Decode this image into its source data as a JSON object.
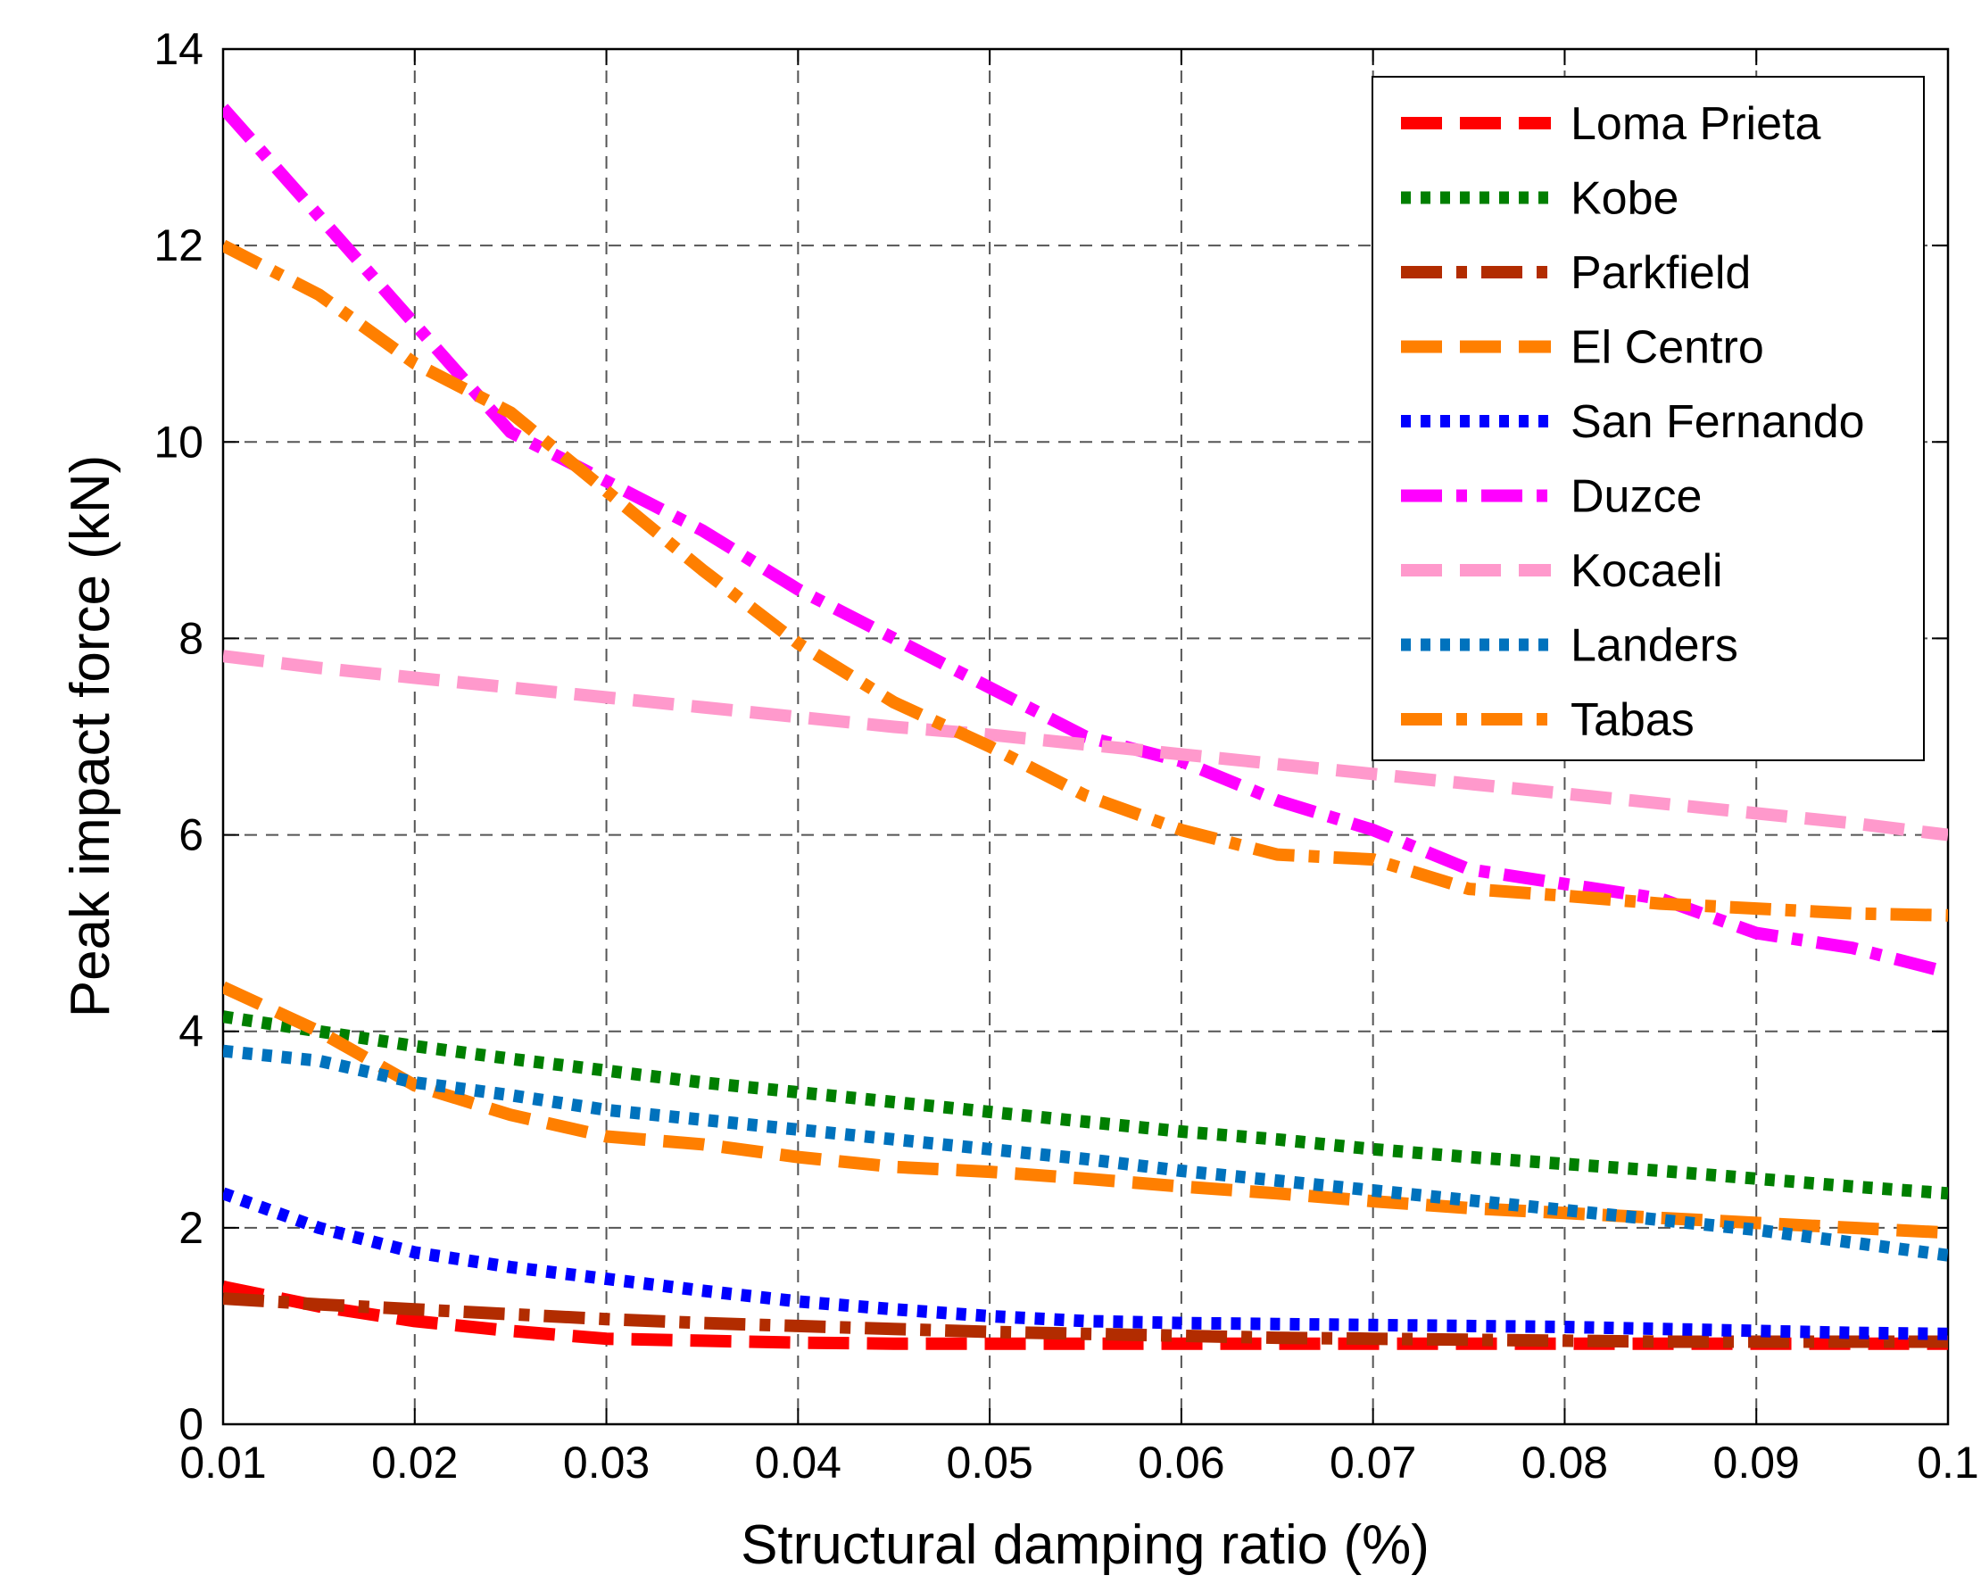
{
  "chart_data": {
    "type": "line",
    "title": "",
    "xlabel": "Structural damping ratio (%)",
    "ylabel": "Peak impact force (kN)",
    "xlim": [
      0.01,
      0.1
    ],
    "ylim": [
      0,
      14
    ],
    "grid": true,
    "legend_position": "top-right",
    "x_ticks": [
      "0.01",
      "0.02",
      "0.03",
      "0.04",
      "0.05",
      "0.06",
      "0.07",
      "0.08",
      "0.09",
      "0.1"
    ],
    "y_ticks": [
      "0",
      "2",
      "4",
      "6",
      "8",
      "10",
      "12",
      "14"
    ],
    "series": [
      {
        "name": "Loma Prieta",
        "color": "#ff0000",
        "style": "dashed",
        "x": [
          0.01,
          0.015,
          0.02,
          0.025,
          0.03,
          0.035,
          0.04,
          0.045,
          0.05,
          0.055,
          0.06,
          0.065,
          0.07,
          0.075,
          0.08,
          0.085,
          0.09,
          0.095,
          0.1
        ],
        "y": [
          1.4,
          1.2,
          1.05,
          0.95,
          0.87,
          0.85,
          0.83,
          0.82,
          0.82,
          0.82,
          0.82,
          0.82,
          0.82,
          0.82,
          0.82,
          0.82,
          0.82,
          0.82,
          0.82
        ]
      },
      {
        "name": "Kobe",
        "color": "#007f00",
        "style": "dotted",
        "x": [
          0.01,
          0.015,
          0.02,
          0.025,
          0.03,
          0.035,
          0.04,
          0.045,
          0.05,
          0.055,
          0.06,
          0.065,
          0.07,
          0.075,
          0.08,
          0.085,
          0.09,
          0.095,
          0.1
        ],
        "y": [
          4.15,
          4.0,
          3.85,
          3.72,
          3.6,
          3.48,
          3.38,
          3.28,
          3.18,
          3.08,
          2.98,
          2.9,
          2.8,
          2.72,
          2.65,
          2.58,
          2.5,
          2.42,
          2.35
        ]
      },
      {
        "name": "Parkfield",
        "color": "#b22c00",
        "style": "dashdot",
        "x": [
          0.01,
          0.015,
          0.02,
          0.025,
          0.03,
          0.035,
          0.04,
          0.045,
          0.05,
          0.055,
          0.06,
          0.065,
          0.07,
          0.075,
          0.08,
          0.085,
          0.09,
          0.095,
          0.1
        ],
        "y": [
          1.28,
          1.22,
          1.17,
          1.12,
          1.07,
          1.03,
          1.0,
          0.97,
          0.94,
          0.92,
          0.9,
          0.88,
          0.87,
          0.86,
          0.85,
          0.84,
          0.84,
          0.84,
          0.84
        ]
      },
      {
        "name": "El Centro",
        "color": "#ff7f00",
        "style": "dashed",
        "x": [
          0.01,
          0.015,
          0.02,
          0.025,
          0.03,
          0.035,
          0.04,
          0.045,
          0.05,
          0.055,
          0.06,
          0.065,
          0.07,
          0.075,
          0.08,
          0.085,
          0.09,
          0.095,
          0.1
        ],
        "y": [
          4.45,
          4.0,
          3.45,
          3.15,
          2.93,
          2.85,
          2.72,
          2.62,
          2.57,
          2.5,
          2.42,
          2.35,
          2.27,
          2.2,
          2.15,
          2.1,
          2.05,
          2.0,
          1.95
        ]
      },
      {
        "name": "San Fernando",
        "color": "#0000ff",
        "style": "dotted",
        "x": [
          0.01,
          0.015,
          0.02,
          0.025,
          0.03,
          0.035,
          0.04,
          0.045,
          0.05,
          0.055,
          0.06,
          0.065,
          0.07,
          0.075,
          0.08,
          0.085,
          0.09,
          0.095,
          0.1
        ],
        "y": [
          2.35,
          2.0,
          1.75,
          1.6,
          1.48,
          1.36,
          1.25,
          1.17,
          1.1,
          1.05,
          1.03,
          1.02,
          1.01,
          1.0,
          0.99,
          0.97,
          0.95,
          0.93,
          0.92
        ]
      },
      {
        "name": "Duzce",
        "color": "#ff00ff",
        "style": "dashdot",
        "x": [
          0.01,
          0.015,
          0.02,
          0.025,
          0.03,
          0.035,
          0.04,
          0.045,
          0.05,
          0.055,
          0.06,
          0.065,
          0.07,
          0.075,
          0.08,
          0.085,
          0.09,
          0.095,
          0.1
        ],
        "y": [
          13.4,
          12.3,
          11.2,
          10.1,
          9.6,
          9.1,
          8.5,
          8.0,
          7.5,
          7.0,
          6.75,
          6.35,
          6.05,
          5.65,
          5.5,
          5.35,
          5.0,
          4.85,
          4.6
        ]
      },
      {
        "name": "Kocaeli",
        "color": "#ff99cc",
        "style": "dashed",
        "x": [
          0.01,
          0.015,
          0.02,
          0.025,
          0.03,
          0.035,
          0.04,
          0.045,
          0.05,
          0.055,
          0.06,
          0.065,
          0.07,
          0.075,
          0.08,
          0.085,
          0.09,
          0.095,
          0.1
        ],
        "y": [
          7.82,
          7.7,
          7.6,
          7.5,
          7.4,
          7.3,
          7.2,
          7.1,
          7.02,
          6.92,
          6.82,
          6.72,
          6.62,
          6.52,
          6.42,
          6.32,
          6.22,
          6.12,
          6.0
        ]
      },
      {
        "name": "Landers",
        "color": "#0072bd",
        "style": "dotted",
        "x": [
          0.01,
          0.015,
          0.02,
          0.025,
          0.03,
          0.035,
          0.04,
          0.045,
          0.05,
          0.055,
          0.06,
          0.065,
          0.07,
          0.075,
          0.08,
          0.085,
          0.09,
          0.095,
          0.1
        ],
        "y": [
          3.8,
          3.7,
          3.48,
          3.35,
          3.2,
          3.1,
          3.0,
          2.9,
          2.8,
          2.7,
          2.58,
          2.48,
          2.38,
          2.28,
          2.18,
          2.08,
          1.98,
          1.85,
          1.72
        ]
      },
      {
        "name": "Tabas",
        "color": "#ff7f00",
        "style": "dashdot",
        "x": [
          0.01,
          0.015,
          0.02,
          0.025,
          0.03,
          0.035,
          0.04,
          0.045,
          0.05,
          0.055,
          0.06,
          0.065,
          0.07,
          0.075,
          0.08,
          0.085,
          0.09,
          0.095,
          0.1
        ],
        "y": [
          12.0,
          11.5,
          10.8,
          10.3,
          9.5,
          8.7,
          7.95,
          7.35,
          6.9,
          6.4,
          6.05,
          5.8,
          5.75,
          5.45,
          5.38,
          5.3,
          5.25,
          5.2,
          5.18
        ]
      }
    ]
  }
}
